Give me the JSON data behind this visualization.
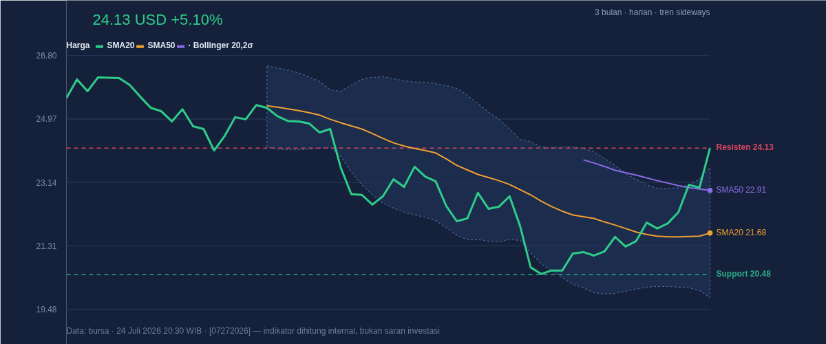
{
  "chart_data": {
    "type": "line",
    "title": "24.13 USD +5.10%",
    "subtitle": "3 bulan · harian · tren sideways",
    "categories": [
      null,
      null,
      null,
      null,
      null,
      null,
      null,
      null,
      null,
      null,
      null,
      null,
      null,
      null,
      null,
      null,
      null,
      null,
      null,
      null,
      null,
      null,
      null,
      null,
      null,
      null,
      null,
      null,
      null,
      null,
      null,
      null,
      null,
      null,
      null,
      null,
      null,
      null,
      null,
      null,
      null,
      null,
      null,
      null,
      null,
      null,
      null,
      null,
      null,
      null,
      null,
      null,
      null,
      null,
      null,
      null,
      null,
      null,
      null,
      null,
      null,
      null
    ],
    "series": [
      {
        "name": "Harga",
        "color": "#2ecc8a",
        "values": [
          25.57,
          26.11,
          25.77,
          26.17,
          26.16,
          26.15,
          25.95,
          25.61,
          25.29,
          25.19,
          24.9,
          25.25,
          24.76,
          24.68,
          24.06,
          24.48,
          25.02,
          24.96,
          25.37,
          25.29,
          25.05,
          24.91,
          24.9,
          24.84,
          24.58,
          24.68,
          23.57,
          22.8,
          22.78,
          22.5,
          22.74,
          23.23,
          23.01,
          23.59,
          23.31,
          23.17,
          22.46,
          22.02,
          22.1,
          22.84,
          22.38,
          22.44,
          22.74,
          21.88,
          20.69,
          20.5,
          20.6,
          20.6,
          21.09,
          21.13,
          21.03,
          21.15,
          21.57,
          21.29,
          21.45,
          21.98,
          21.81,
          21.96,
          22.28,
          23.07,
          22.99,
          24.13
        ]
      },
      {
        "name": "SMA20",
        "color": "#f0a030",
        "values": [
          null,
          null,
          null,
          null,
          null,
          null,
          null,
          null,
          null,
          null,
          null,
          null,
          null,
          null,
          null,
          null,
          null,
          null,
          null,
          25.35,
          25.31,
          25.26,
          25.21,
          25.15,
          25.08,
          24.96,
          24.86,
          24.77,
          24.68,
          24.55,
          24.41,
          24.28,
          24.19,
          24.12,
          24.06,
          23.99,
          23.82,
          23.63,
          23.5,
          23.37,
          23.28,
          23.19,
          23.08,
          22.93,
          22.78,
          22.6,
          22.44,
          22.31,
          22.2,
          22.15,
          22.1,
          22.0,
          21.91,
          21.81,
          21.71,
          21.64,
          21.59,
          21.57,
          21.57,
          21.58,
          21.59,
          21.68
        ],
        "upper": [
          null,
          null,
          null,
          null,
          null,
          null,
          null,
          null,
          null,
          null,
          null,
          null,
          null,
          null,
          null,
          null,
          null,
          null,
          null,
          26.5,
          26.44,
          26.38,
          26.3,
          26.18,
          26.05,
          25.81,
          25.77,
          25.95,
          26.11,
          26.17,
          26.19,
          26.13,
          26.07,
          26.03,
          26.03,
          25.99,
          25.93,
          25.85,
          25.65,
          25.41,
          25.17,
          24.96,
          24.68,
          24.38,
          24.32,
          24.16,
          24.14,
          24.16,
          24.16,
          24.12,
          24.02,
          23.83,
          23.63,
          23.39,
          23.23,
          23.07,
          22.97,
          22.97,
          22.99,
          23.07,
          23.23,
          23.57
        ],
        "lower": [
          null,
          null,
          null,
          null,
          null,
          null,
          null,
          null,
          null,
          null,
          null,
          null,
          null,
          null,
          null,
          null,
          null,
          null,
          null,
          24.16,
          24.1,
          24.08,
          24.08,
          24.1,
          24.12,
          24.16,
          23.89,
          23.43,
          23.07,
          22.78,
          22.54,
          22.4,
          22.28,
          22.2,
          22.14,
          22.04,
          21.84,
          21.61,
          21.49,
          21.49,
          21.45,
          21.43,
          21.49,
          21.47,
          21.11,
          20.79,
          20.6,
          20.4,
          20.2,
          20.1,
          19.96,
          19.92,
          19.94,
          20.0,
          20.06,
          20.12,
          20.14,
          20.14,
          20.12,
          20.1,
          20.02,
          19.82
        ],
        "value_labels": [
          null,
          null,
          null,
          null,
          null,
          null,
          null,
          null,
          null,
          null,
          null,
          null,
          null,
          null,
          null,
          null,
          null,
          null,
          null,
          null,
          null,
          null,
          null,
          null,
          null,
          null,
          null,
          null,
          null,
          null,
          null,
          null,
          null,
          null,
          null,
          null,
          null,
          null,
          null,
          null,
          null,
          null,
          null,
          null,
          null,
          null,
          null,
          null,
          null,
          null,
          null,
          null,
          null,
          null,
          null,
          null,
          null,
          null,
          null,
          null,
          null,
          "SMA20 21.68"
        ]
      },
      {
        "name": "SMA50",
        "color": "#8b6be8",
        "values": [
          null,
          null,
          null,
          null,
          null,
          null,
          null,
          null,
          null,
          null,
          null,
          null,
          null,
          null,
          null,
          null,
          null,
          null,
          null,
          null,
          null,
          null,
          null,
          null,
          null,
          null,
          null,
          null,
          null,
          null,
          null,
          null,
          null,
          null,
          null,
          null,
          null,
          null,
          null,
          null,
          null,
          null,
          null,
          null,
          null,
          null,
          null,
          null,
          null,
          23.79,
          23.7,
          23.6,
          23.49,
          23.42,
          23.35,
          23.27,
          23.19,
          23.12,
          23.05,
          22.99,
          22.95,
          22.91
        ],
        "value_labels": [
          null,
          null,
          null,
          null,
          null,
          null,
          null,
          null,
          null,
          null,
          null,
          null,
          null,
          null,
          null,
          null,
          null,
          null,
          null,
          null,
          null,
          null,
          null,
          null,
          null,
          null,
          null,
          null,
          null,
          null,
          null,
          null,
          null,
          null,
          null,
          null,
          null,
          null,
          null,
          null,
          null,
          null,
          null,
          null,
          null,
          null,
          null,
          null,
          null,
          null,
          null,
          null,
          null,
          null,
          null,
          null,
          null,
          null,
          null,
          null,
          null,
          "SMA50 22.91"
        ]
      }
    ],
    "ylim": [
      18.47,
      28.39
    ],
    "yticks": [
      19.48,
      21.31,
      23.14,
      24.97,
      {
        "value": 26.8,
        "label": "26.80"
      }
    ],
    "grid": "y",
    "tick_labels": "y",
    "legend": "top left",
    "marker": "none",
    "line_style": "solid",
    "ref_lines": [
      {
        "axis": "y",
        "value": 24.13,
        "label": "Resisten 24.13",
        "color": "#d9445f",
        "line_style": "dashed"
      },
      {
        "axis": "y",
        "value": 20.48,
        "label": "Support 20.48",
        "color": "#2aa982",
        "line_style": "dashed"
      }
    ],
    "annotations": [
      "· Bollinger 20,2σ",
      "Data: bursa · 24 Juli 2026 20:30 WIB · [07272026] — indikator dihitung internal, bukan saran investasi"
    ]
  }
}
